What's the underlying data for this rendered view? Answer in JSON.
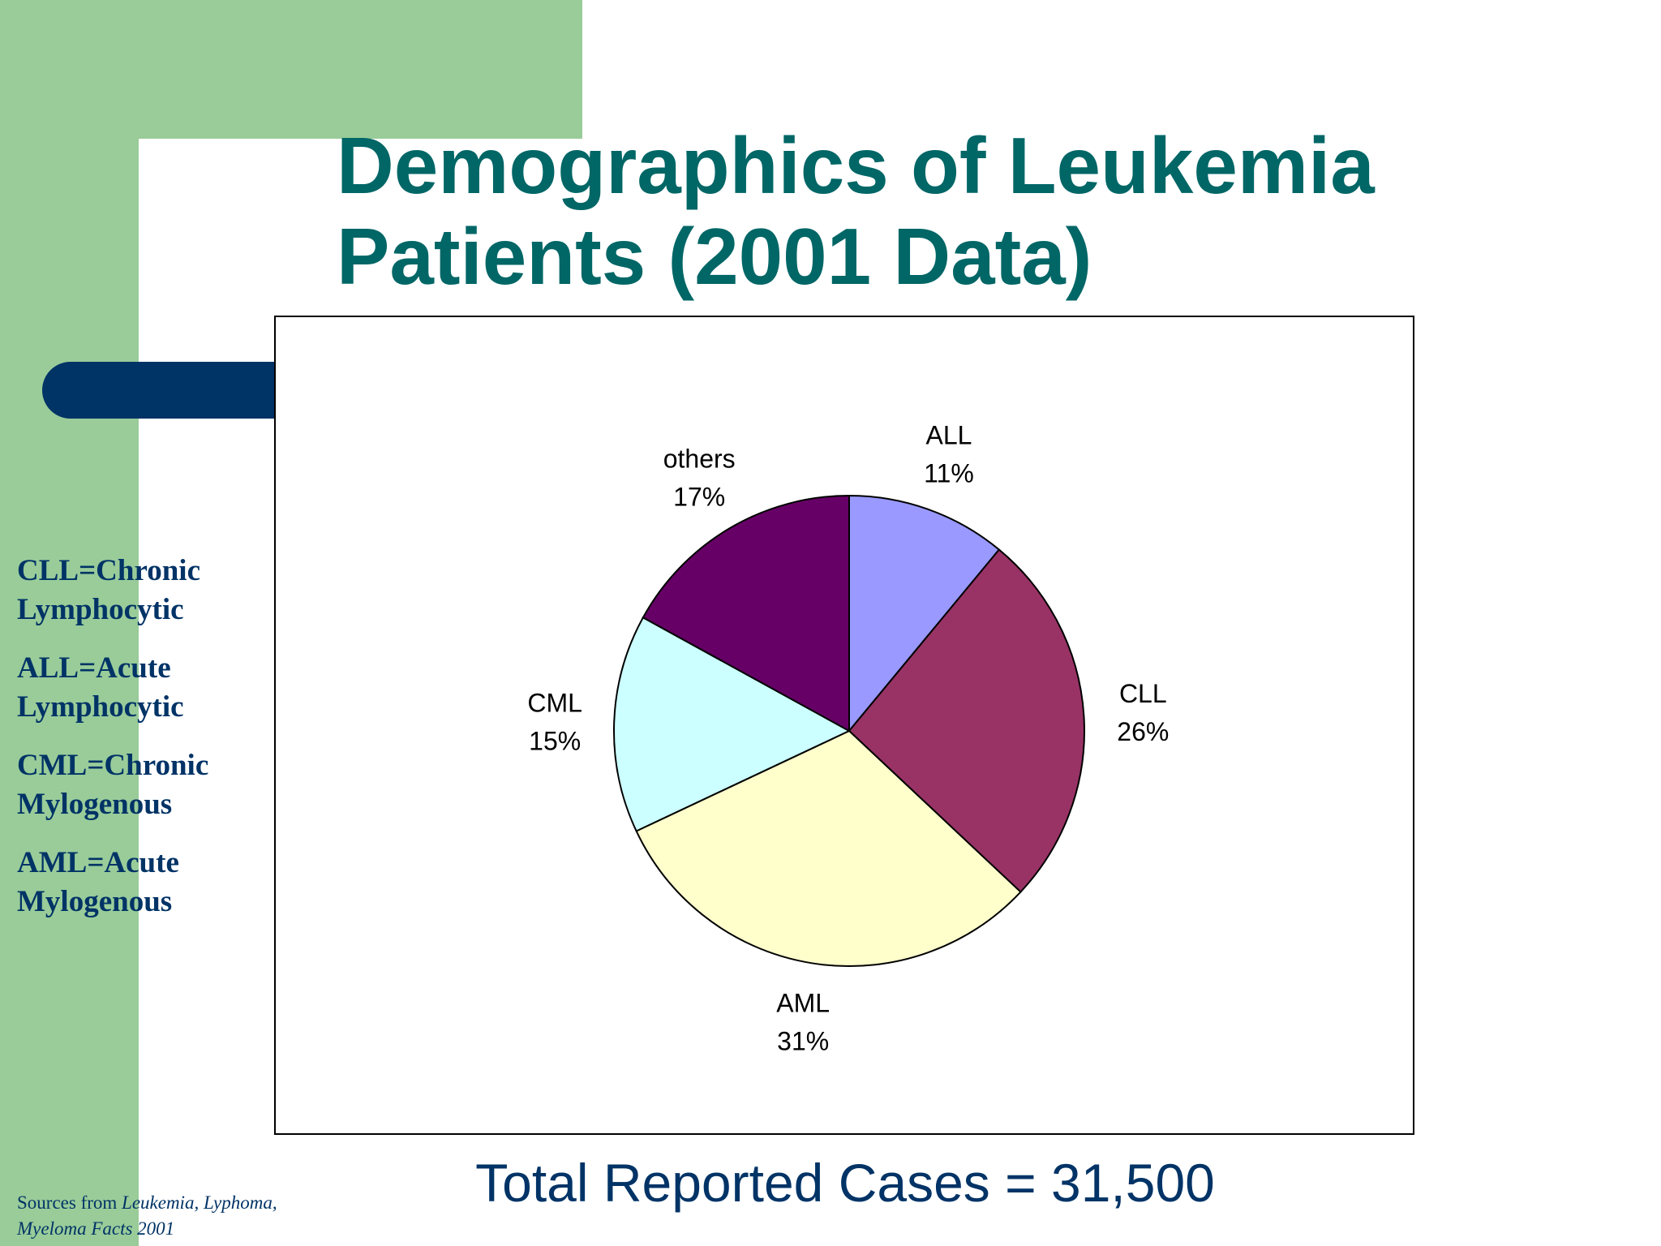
{
  "slide": {
    "title_line1": "Demographics of Leukemia",
    "title_line2": "Patients (2001 Data)",
    "definitions": [
      {
        "line1": "CLL=Chronic",
        "line2": "Lymphocytic"
      },
      {
        "line1": "ALL=Acute",
        "line2": "Lymphocytic"
      },
      {
        "line1": "CML=Chronic",
        "line2": "Mylogenous"
      },
      {
        "line1": "AML=Acute",
        "line2": "Mylogenous"
      }
    ],
    "total": "Total Reported Cases = 31,500",
    "sources_prefix": "Sources from ",
    "sources_title_line1": "Leukemia, Lyphoma,",
    "sources_title_line2": "Myeloma Facts 2001"
  },
  "colors": {
    "background_green": "#99cc99",
    "navy": "#003366",
    "title_teal": "#006666"
  },
  "chart_data": {
    "type": "pie",
    "start_angle_deg": 0,
    "direction": "clockwise",
    "slices": [
      {
        "label": "ALL",
        "value": 11,
        "value_label": "11%",
        "color": "#9999ff"
      },
      {
        "label": "CLL",
        "value": 26,
        "value_label": "26%",
        "color": "#993366"
      },
      {
        "label": "AML",
        "value": 31,
        "value_label": "31%",
        "color": "#ffffcc"
      },
      {
        "label": "CML",
        "value": 15,
        "value_label": "15%",
        "color": "#ccffff"
      },
      {
        "label": "others",
        "value": 17,
        "value_label": "17%",
        "color": "#660066"
      }
    ]
  }
}
